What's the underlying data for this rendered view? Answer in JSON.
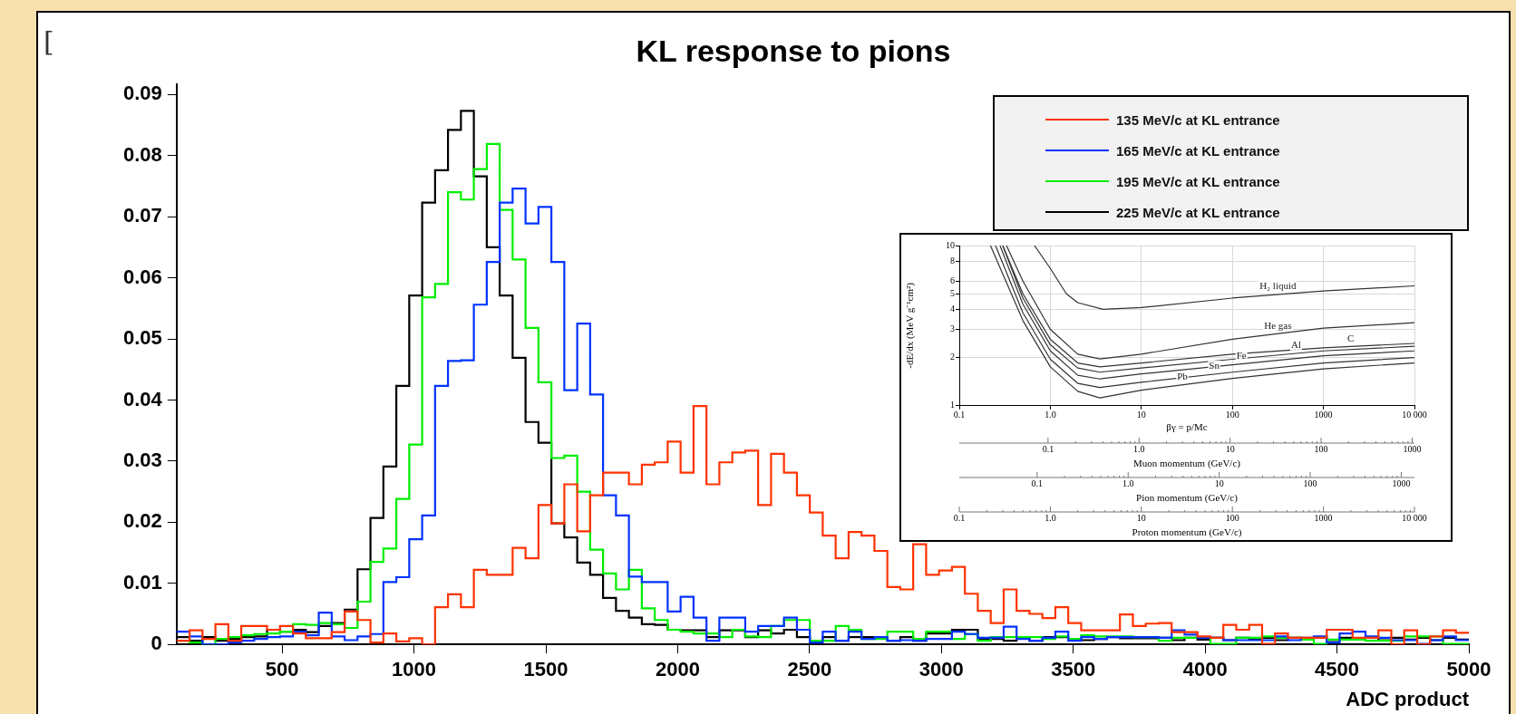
{
  "chart_data": [
    {
      "type": "histogram",
      "title": "KL response to pions",
      "xlabel": "ADC product",
      "annotations": [
        "["
      ],
      "bins": [
        100,
        149,
        198,
        247,
        296,
        345,
        394,
        443,
        492,
        541,
        590,
        639,
        688,
        737,
        786,
        835,
        884,
        933,
        982,
        1031,
        1080,
        1129,
        1178,
        1227,
        1276,
        1325,
        1374,
        1423,
        1472,
        1521,
        1570,
        1619,
        1668,
        1717,
        1766,
        1815,
        1864,
        1913,
        1962,
        2011,
        2060,
        2109,
        2158,
        2207,
        2256,
        2305,
        2354,
        2403,
        2452,
        2501,
        2550,
        2599,
        2648,
        2697,
        2746,
        2795,
        2844,
        2893,
        2942,
        2991,
        3040,
        3089,
        3138,
        3187,
        3236,
        3285,
        3334,
        3383,
        3432,
        3481,
        3530,
        3579,
        3628,
        3677,
        3726,
        3775,
        3824,
        3873,
        3922,
        3971,
        4020,
        4069,
        4118,
        4167,
        4216,
        4265,
        4314,
        4363,
        4412,
        4461,
        4510,
        4559,
        4608,
        4657,
        4706,
        4755,
        4804,
        4853,
        4902,
        4951,
        5000
      ],
      "series": [
        {
          "name": "135 MeV/c at KL entrance",
          "color": "#ff3300",
          "values": [
            0.0006,
            0.0023,
            0.0009,
            0.0033,
            0.0006,
            0.003,
            0.003,
            0.0024,
            0.003,
            0.0018,
            0.001,
            0.001,
            0.002,
            0.0054,
            0.004,
            0.0003,
            0.0018,
            0.0005,
            0.001,
            0,
            0.0061,
            0.0082,
            0.0061,
            0.0122,
            0.0114,
            0.0114,
            0.0158,
            0.0141,
            0.0228,
            0.0198,
            0.0262,
            0.0185,
            0.0244,
            0.0281,
            0.0281,
            0.0262,
            0.0294,
            0.0298,
            0.0332,
            0.0281,
            0.039,
            0.0262,
            0.0298,
            0.0314,
            0.0317,
            0.0228,
            0.0312,
            0.0281,
            0.0244,
            0.0216,
            0.0178,
            0.0141,
            0.0184,
            0.0178,
            0.0153,
            0.0094,
            0.009,
            0.0164,
            0.0114,
            0.0121,
            0.0127,
            0.0083,
            0.0055,
            0.0035,
            0.009,
            0.0055,
            0.005,
            0.0043,
            0.0061,
            0.0035,
            0.0023,
            0.0023,
            0.0023,
            0.0049,
            0.003,
            0.0034,
            0.0035,
            0.002,
            0.002,
            0.0013,
            0.0011,
            0.0032,
            0.0024,
            0.0032,
            0.0001,
            0.0018,
            0.0011,
            0.0011,
            0.0011,
            0.0024,
            0.0024,
            0.0011,
            0.0011,
            0.0023,
            0,
            0.0023,
            0,
            0.0013,
            0.0023,
            0.0019
          ]
        },
        {
          "name": "165 MeV/c at KL entrance",
          "color": "#0033ff",
          "values": [
            0.0021,
            0.0013,
            0,
            0,
            0.0003,
            0.0006,
            0.0009,
            0.0012,
            0.0013,
            0.0021,
            0.0015,
            0.0052,
            0.0013,
            0.0007,
            0.0013,
            0.0017,
            0.0102,
            0.011,
            0.0172,
            0.0211,
            0.0423,
            0.0464,
            0.0465,
            0.0556,
            0.0626,
            0.0723,
            0.0746,
            0.0689,
            0.0716,
            0.0626,
            0.0416,
            0.0525,
            0.0409,
            0.0244,
            0.0211,
            0.0111,
            0.0102,
            0.0102,
            0.0054,
            0.0078,
            0.0044,
            0.0006,
            0.0044,
            0.0044,
            0.0021,
            0.003,
            0.003,
            0.0044,
            0.0024,
            0.0003,
            0.0021,
            0.0006,
            0.0021,
            0.0009,
            0.0012,
            0.0006,
            0.0007,
            0.0006,
            0.0009,
            0.0009,
            0.0021,
            0.0017,
            0.0011,
            0.0011,
            0.0029,
            0.0009,
            0.0006,
            0.0011,
            0.0021,
            0.0006,
            0.0012,
            0.0009,
            0.0012,
            0.0012,
            0.0012,
            0.0012,
            0.0011,
            0.0023,
            0.0016,
            0.0011,
            0.0011,
            0.0007,
            0.0007,
            0.0007,
            0.0007,
            0.0013,
            0.0007,
            0.0011,
            0.0013,
            0.0003,
            0.0018,
            0.0021,
            0.0013,
            0.0011,
            0.0007,
            0.0007,
            0.0001,
            0.0007,
            0.0013,
            0.0007
          ]
        },
        {
          "name": "195 MeV/c at KL entrance",
          "color": "#00ee00",
          "values": [
            0.0006,
            0.0003,
            0,
            0.0009,
            0.0012,
            0.0015,
            0.0017,
            0.0018,
            0.0021,
            0.0033,
            0.0032,
            0.0035,
            0.0033,
            0.0027,
            0.007,
            0.0135,
            0.0157,
            0.0238,
            0.0327,
            0.0568,
            0.059,
            0.074,
            0.0728,
            0.0778,
            0.0819,
            0.0711,
            0.063,
            0.0518,
            0.0429,
            0.0305,
            0.0309,
            0.025,
            0.0155,
            0.0116,
            0.009,
            0.0122,
            0.0059,
            0.004,
            0.0024,
            0.0021,
            0.0018,
            0.0018,
            0.0012,
            0.0024,
            0.0013,
            0.0012,
            0.003,
            0.004,
            0.004,
            0.0006,
            0.0006,
            0.003,
            0.0024,
            0.0009,
            0.0009,
            0.0021,
            0.0021,
            0.0009,
            0.0021,
            0.0021,
            0.0009,
            0.0017,
            0.0006,
            0.0012,
            0.0012,
            0.0012,
            0.0012,
            0.0009,
            0.0013,
            0.0009,
            0.0015,
            0.0013,
            0.0013,
            0.0013,
            0.0012,
            0.0012,
            0.0006,
            0.0011,
            0.0011,
            0.0011,
            0.0001,
            0.0001,
            0.0011,
            0.0011,
            0.0013,
            0.0011,
            0.0011,
            0.0008,
            0.0001,
            0.0008,
            0.0008,
            0.0008,
            0.0006,
            0.0006,
            0.0006,
            0.0013,
            0.0013,
            0.0013,
            0.0001,
            0.0001
          ]
        },
        {
          "name": "225 MeV/c at KL entrance",
          "color": "#000000",
          "values": [
            0.0012,
            0.0006,
            0.0012,
            0.0006,
            0.0009,
            0.0012,
            0.0013,
            0.0024,
            0.0021,
            0.0024,
            0.002,
            0.003,
            0.0035,
            0.0057,
            0.0123,
            0.0207,
            0.0291,
            0.0423,
            0.0571,
            0.0723,
            0.0776,
            0.0842,
            0.0873,
            0.0766,
            0.065,
            0.0571,
            0.0469,
            0.0364,
            0.033,
            0.0198,
            0.0175,
            0.0134,
            0.0114,
            0.0076,
            0.0055,
            0.0044,
            0.0033,
            0.0032,
            0.0024,
            0.0023,
            0.0023,
            0.0012,
            0.0023,
            0.0023,
            0.0012,
            0.0023,
            0.0018,
            0.0024,
            0.0012,
            0.0006,
            0.0012,
            0.0006,
            0.0012,
            0.0012,
            0.0012,
            0.0006,
            0.0012,
            0.0006,
            0.0018,
            0.0018,
            0.0024,
            0.0024,
            0.0009,
            0.0009,
            0.0006,
            0.0012,
            0.0006,
            0.0012,
            0.0012,
            0.0009,
            0.0007,
            0.0009,
            0.0012,
            0.001,
            0.001,
            0.001,
            0.0011,
            0.0007,
            0.0011,
            0.0008,
            0.0011,
            0.0007,
            0.0011,
            0.0008,
            0.0011,
            0.0007,
            0.0011,
            0.0008,
            0.0011,
            0.0007,
            0.0011,
            0.0008,
            0.0011,
            0.0007,
            0.0011,
            0.0008,
            0.0011,
            0.0007,
            0.0011,
            0.0008
          ]
        }
      ],
      "xlim": [
        100,
        5000
      ],
      "xticks": [
        500,
        1000,
        1500,
        2000,
        2500,
        3000,
        3500,
        4000,
        4500,
        5000
      ],
      "ylim": [
        0,
        0.0917
      ],
      "yticks": [
        0,
        0.01,
        0.02,
        0.03,
        0.04,
        0.05,
        0.06,
        0.07,
        0.08,
        0.09
      ],
      "grid": false,
      "legend": "top right"
    },
    {
      "type": "line",
      "xlabel": "βγ = p/Mc",
      "ylabel": "-dE/dx (MeV g⁻¹cm²)",
      "log": "xy",
      "grid": true,
      "xlim": [
        0.1,
        10000
      ],
      "xticks": [
        {
          "value": 0.1,
          "label": "0.1"
        },
        {
          "value": 1,
          "label": "1.0"
        },
        10,
        100,
        1000,
        {
          "value": 10000,
          "label": "10 000"
        }
      ],
      "ylim": [
        1,
        10
      ],
      "yticks": [
        1,
        2,
        3,
        4,
        5,
        6,
        8,
        10
      ],
      "series": [
        {
          "name": "H₂ liquid",
          "color": "#333333",
          "x": [
            0.67,
            1,
            1.5,
            2,
            3.8,
            10,
            100,
            1000,
            10000
          ],
          "values": [
            10,
            7.2,
            5.0,
            4.4,
            4.0,
            4.1,
            4.7,
            5.2,
            5.6
          ]
        },
        {
          "name": "He gas",
          "color": "#333333",
          "x": [
            0.33,
            0.5,
            1,
            2,
            3.5,
            10,
            100,
            1000,
            10000
          ],
          "values": [
            10,
            6.0,
            3.0,
            2.1,
            1.96,
            2.1,
            2.6,
            3.05,
            3.3
          ]
        },
        {
          "name": "C",
          "color": "#333333",
          "x": [
            0.3,
            0.5,
            1,
            2,
            3.5,
            10,
            100,
            1000,
            10000
          ],
          "values": [
            10,
            5.0,
            2.6,
            1.85,
            1.75,
            1.85,
            2.1,
            2.3,
            2.45
          ]
        },
        {
          "name": "Al",
          "color": "#333333",
          "x": [
            0.3,
            0.5,
            1,
            2,
            3.5,
            10,
            100,
            1000,
            10000
          ],
          "values": [
            10,
            4.7,
            2.4,
            1.72,
            1.62,
            1.72,
            1.95,
            2.2,
            2.35
          ]
        },
        {
          "name": "Fe",
          "color": "#333333",
          "x": [
            0.28,
            0.5,
            1,
            2,
            3.5,
            10,
            100,
            1000,
            10000
          ],
          "values": [
            10,
            4.3,
            2.2,
            1.55,
            1.47,
            1.58,
            1.8,
            2.05,
            2.2
          ]
        },
        {
          "name": "Sn",
          "color": "#333333",
          "x": [
            0.25,
            0.5,
            1,
            2,
            3.5,
            10,
            100,
            1000,
            10000
          ],
          "values": [
            10,
            3.8,
            1.95,
            1.38,
            1.3,
            1.4,
            1.62,
            1.85,
            2.0
          ]
        },
        {
          "name": "Pb",
          "color": "#333333",
          "x": [
            0.22,
            0.5,
            1,
            2,
            3.5,
            10,
            100,
            1000,
            10000
          ],
          "values": [
            10,
            3.4,
            1.75,
            1.23,
            1.12,
            1.25,
            1.48,
            1.7,
            1.85
          ]
        }
      ]
    },
    {
      "type": "other",
      "xlabel": "Muon momentum (GeV/c)",
      "annotations": [
        "0.1",
        "1.0",
        "10",
        "100",
        "1000"
      ]
    },
    {
      "type": "other",
      "xlabel": "Pion momentum (GeV/c)",
      "annotations": [
        "0.1",
        "1.0",
        "10",
        "100",
        "1000"
      ]
    },
    {
      "type": "other",
      "xlabel": "Proton momentum (GeV/c)",
      "annotations": [
        "0.1",
        "1.0",
        "10",
        "100",
        "1000",
        "10 000"
      ]
    }
  ]
}
